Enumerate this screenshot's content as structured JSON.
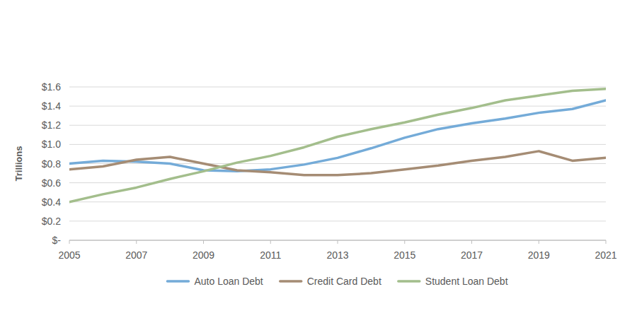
{
  "chart_data": {
    "type": "line",
    "ylabel": "Trillions",
    "x": [
      2005,
      2006,
      2007,
      2008,
      2009,
      2010,
      2011,
      2012,
      2013,
      2014,
      2015,
      2016,
      2017,
      2018,
      2019,
      2020,
      2021
    ],
    "xlim": [
      2005,
      2021
    ],
    "xticks": [
      2005,
      2007,
      2009,
      2011,
      2013,
      2015,
      2017,
      2019,
      2021
    ],
    "ylim": [
      0,
      1.6
    ],
    "yticks": [
      {
        "value": 0,
        "label": "$-"
      },
      {
        "value": 0.2,
        "label": "$0.2"
      },
      {
        "value": 0.4,
        "label": "$0.4"
      },
      {
        "value": 0.6,
        "label": "$0.6"
      },
      {
        "value": 0.8,
        "label": "$0.8"
      },
      {
        "value": 1.0,
        "label": "$1.0"
      },
      {
        "value": 1.2,
        "label": "$1.2"
      },
      {
        "value": 1.4,
        "label": "$1.4"
      },
      {
        "value": 1.6,
        "label": "$1.6"
      }
    ],
    "grid": true,
    "legend": "bottom",
    "series": [
      {
        "name": "Auto Loan Debt",
        "color": "#74abd8",
        "values": [
          0.8,
          0.83,
          0.82,
          0.8,
          0.73,
          0.72,
          0.74,
          0.79,
          0.86,
          0.96,
          1.07,
          1.16,
          1.22,
          1.27,
          1.33,
          1.37,
          1.46
        ]
      },
      {
        "name": "Credit Card Debt",
        "color": "#a58c74",
        "values": [
          0.74,
          0.77,
          0.84,
          0.87,
          0.8,
          0.73,
          0.71,
          0.68,
          0.68,
          0.7,
          0.74,
          0.78,
          0.83,
          0.87,
          0.93,
          0.83,
          0.86
        ]
      },
      {
        "name": "Student Loan Debt",
        "color": "#a3be8c",
        "values": [
          0.4,
          0.48,
          0.55,
          0.64,
          0.72,
          0.81,
          0.88,
          0.97,
          1.08,
          1.16,
          1.23,
          1.31,
          1.38,
          1.46,
          1.51,
          1.56,
          1.58
        ]
      }
    ]
  }
}
